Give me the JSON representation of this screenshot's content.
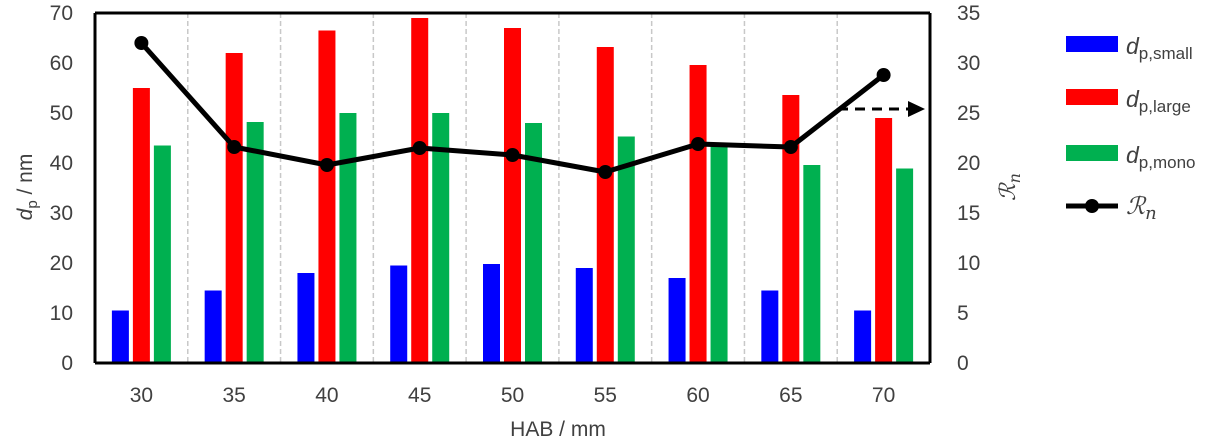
{
  "chart_data": {
    "type": "bar",
    "xlabel": "HAB / mm",
    "categories": [
      "30",
      "35",
      "40",
      "45",
      "50",
      "55",
      "60",
      "65",
      "70"
    ],
    "ylabel_left": {
      "main": "d",
      "sub": "p",
      "unit": " / nm"
    },
    "ylabel_right": {
      "main": "ℛ",
      "sub": "n"
    },
    "ylim_left": [
      0,
      70
    ],
    "ylim_right": [
      0,
      35
    ],
    "yticks_left": [
      "0",
      "10",
      "20",
      "30",
      "40",
      "50",
      "60",
      "70"
    ],
    "yticks_right": [
      "0",
      "5",
      "10",
      "15",
      "20",
      "25",
      "30",
      "35"
    ],
    "grid": "vertical",
    "legend_position": "right",
    "series": [
      {
        "name": "d",
        "name_sub": "p,small",
        "type": "bar",
        "axis": "left",
        "color": "#0000ff",
        "values": [
          10.5,
          14.5,
          18,
          19.5,
          19.8,
          19,
          17,
          14.5,
          10.5
        ]
      },
      {
        "name": "d",
        "name_sub": "p,large",
        "type": "bar",
        "axis": "left",
        "color": "#ff0000",
        "values": [
          55,
          62,
          66.5,
          69,
          67,
          63.2,
          59.6,
          53.6,
          49
        ]
      },
      {
        "name": "d",
        "name_sub": "p,mono",
        "type": "bar",
        "axis": "left",
        "color": "#00b050",
        "values": [
          43.5,
          48.2,
          50,
          50,
          48,
          45.3,
          43.5,
          39.6,
          38.9
        ]
      },
      {
        "name": "ℛ",
        "name_sub": "n",
        "type": "line",
        "axis": "right",
        "color": "#000000",
        "values": [
          32,
          21.6,
          19.8,
          21.5,
          20.8,
          19.1,
          21.9,
          21.6,
          28.8
        ]
      }
    ],
    "annotation": {
      "type": "arrow",
      "style": "dashed",
      "direction": "right",
      "points_to": "right axis"
    }
  }
}
